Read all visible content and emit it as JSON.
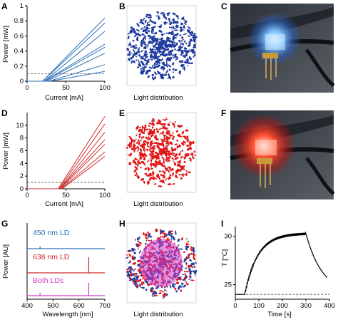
{
  "panels": {
    "A": {
      "letter": "A",
      "ylabel": "Power [mW]",
      "xlabel": "Current [mA]"
    },
    "B": {
      "letter": "B",
      "caption": "Light distribution"
    },
    "C": {
      "letter": "C"
    },
    "D": {
      "letter": "D",
      "ylabel": "Power [mW]",
      "xlabel": "Current [mA]"
    },
    "E": {
      "letter": "E",
      "caption": "Light distribution"
    },
    "F": {
      "letter": "F"
    },
    "G": {
      "letter": "G",
      "ylabel": "Power [AU]",
      "xlabel": "Wavelength [nm]",
      "label_450": "450 nm LD",
      "label_638": "638 nm LD",
      "label_both": "Both LDs"
    },
    "H": {
      "letter": "H",
      "caption": "Light distribution"
    },
    "I": {
      "letter": "I",
      "ylabel": "T [°C]",
      "xlabel": "Time [s]"
    }
  },
  "colors": {
    "blue": "#2a6fb8",
    "red": "#cc2b2b",
    "magenta": "#d23cc6",
    "dark": "#1a1a2e",
    "dash": "#555555",
    "scatter_blue": "#1f3b9e",
    "scatter_red": "#e01818"
  },
  "chart_data": [
    {
      "id": "A",
      "type": "line",
      "xlabel": "Current [mA]",
      "ylabel": "Power [mW]",
      "xlim": [
        0,
        100
      ],
      "ylim": [
        0,
        1
      ],
      "xticks": [
        "0",
        "50",
        "100"
      ],
      "yticks": [
        "0",
        "0.2",
        "0.4",
        "0.6",
        "0.8",
        "1"
      ],
      "threshold_dashed": 0.1,
      "series": [
        {
          "x": [
            0,
            20,
            100
          ],
          "y": [
            0,
            0,
            0.84
          ]
        },
        {
          "x": [
            0,
            20,
            100
          ],
          "y": [
            0,
            0,
            0.77
          ]
        },
        {
          "x": [
            0,
            22,
            100
          ],
          "y": [
            0,
            0,
            0.66
          ]
        },
        {
          "x": [
            0,
            22,
            100
          ],
          "y": [
            0,
            0,
            0.49
          ]
        },
        {
          "x": [
            0,
            23,
            100
          ],
          "y": [
            0,
            0,
            0.45
          ]
        },
        {
          "x": [
            0,
            25,
            100
          ],
          "y": [
            0,
            0,
            0.37
          ]
        },
        {
          "x": [
            0,
            28,
            100
          ],
          "y": [
            0,
            0,
            0.22
          ]
        },
        {
          "x": [
            0,
            30,
            100
          ],
          "y": [
            0,
            0,
            0.13
          ]
        }
      ]
    },
    {
      "id": "D",
      "type": "line",
      "xlabel": "Current [mA]",
      "ylabel": "Power [mW]",
      "xlim": [
        0,
        100
      ],
      "ylim": [
        0,
        12
      ],
      "xticks": [
        "0",
        "50",
        "100"
      ],
      "yticks": [
        "0",
        "2",
        "4",
        "6",
        "8",
        "10"
      ],
      "threshold_dashed": 1,
      "series": [
        {
          "x": [
            0,
            40,
            100
          ],
          "y": [
            0,
            0,
            11.4
          ]
        },
        {
          "x": [
            0,
            41,
            100
          ],
          "y": [
            0,
            0,
            10.2
          ]
        },
        {
          "x": [
            0,
            42,
            100
          ],
          "y": [
            0,
            0,
            8.9
          ]
        },
        {
          "x": [
            0,
            42,
            100
          ],
          "y": [
            0,
            0,
            7.7
          ]
        },
        {
          "x": [
            0,
            43,
            100
          ],
          "y": [
            0,
            0,
            7.0
          ]
        },
        {
          "x": [
            0,
            44,
            100
          ],
          "y": [
            0,
            0,
            5.8
          ]
        },
        {
          "x": [
            0,
            45,
            100
          ],
          "y": [
            0,
            0,
            5.1
          ]
        }
      ]
    },
    {
      "id": "G",
      "type": "line",
      "xlabel": "Wavelength [nm]",
      "ylabel": "Power [AU]",
      "xlim": [
        400,
        700
      ],
      "xticks": [
        "400",
        "500",
        "600",
        "700"
      ],
      "series": [
        {
          "name": "450 nm LD",
          "peak_x": 450
        },
        {
          "name": "638 nm LD",
          "peak_x": 638
        },
        {
          "name": "Both LDs",
          "peak_x": [
            450,
            638
          ]
        }
      ]
    },
    {
      "id": "I",
      "type": "line",
      "xlabel": "Time [s]",
      "ylabel": "T [°C]",
      "xlim": [
        0,
        400
      ],
      "ylim": [
        23.5,
        31
      ],
      "xticks": [
        "0",
        "100",
        "200",
        "300",
        "400"
      ],
      "yticks": [
        "25",
        "30"
      ],
      "baseline_dashed": 24,
      "series": [
        {
          "x": [
            0,
            40,
            100,
            150,
            200,
            250,
            300,
            350,
            390
          ],
          "y": [
            24,
            24,
            28.3,
            29.4,
            29.9,
            30.2,
            30.3,
            26.6,
            25.1
          ]
        }
      ]
    }
  ]
}
